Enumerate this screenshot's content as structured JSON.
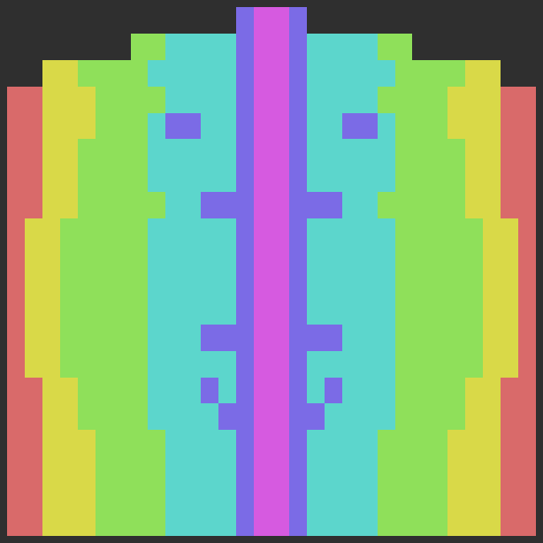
{
  "chart_data": {
    "type": "heatmap",
    "tick_labels": false,
    "colors": [
      "#2f2f2f",
      "#d96a6a",
      "#d9d948",
      "#8fe05a",
      "#5cd6cc",
      "#7b6be6",
      "#d65ae0"
    ],
    "cells": [
      [
        0,
        0,
        0,
        0,
        0,
        0,
        0,
        0,
        0,
        0,
        0,
        0,
        0,
        5,
        6,
        6,
        5,
        0,
        0,
        0,
        0,
        0,
        0,
        0,
        0,
        0,
        0,
        0,
        0,
        0
      ],
      [
        0,
        0,
        0,
        0,
        0,
        0,
        0,
        3,
        3,
        4,
        4,
        4,
        4,
        5,
        6,
        6,
        5,
        4,
        4,
        4,
        4,
        3,
        3,
        0,
        0,
        0,
        0,
        0,
        0,
        0
      ],
      [
        0,
        0,
        2,
        2,
        3,
        3,
        3,
        3,
        4,
        4,
        4,
        4,
        4,
        5,
        6,
        6,
        5,
        4,
        4,
        4,
        4,
        4,
        3,
        3,
        3,
        3,
        2,
        2,
        0,
        0
      ],
      [
        1,
        1,
        2,
        2,
        2,
        3,
        3,
        3,
        3,
        4,
        4,
        4,
        4,
        5,
        6,
        6,
        5,
        4,
        4,
        4,
        4,
        3,
        3,
        3,
        3,
        2,
        2,
        2,
        1,
        1
      ],
      [
        1,
        1,
        2,
        2,
        2,
        3,
        3,
        3,
        4,
        5,
        5,
        4,
        4,
        5,
        6,
        6,
        5,
        4,
        4,
        5,
        5,
        4,
        3,
        3,
        3,
        2,
        2,
        2,
        1,
        1
      ],
      [
        1,
        1,
        2,
        2,
        3,
        3,
        3,
        3,
        4,
        4,
        4,
        4,
        4,
        5,
        6,
        6,
        5,
        4,
        4,
        4,
        4,
        4,
        3,
        3,
        3,
        3,
        2,
        2,
        1,
        1
      ],
      [
        1,
        1,
        2,
        2,
        3,
        3,
        3,
        3,
        4,
        4,
        4,
        4,
        4,
        5,
        6,
        6,
        5,
        4,
        4,
        4,
        4,
        4,
        3,
        3,
        3,
        3,
        2,
        2,
        1,
        1
      ],
      [
        1,
        1,
        2,
        2,
        3,
        3,
        3,
        3,
        3,
        4,
        4,
        5,
        5,
        5,
        6,
        6,
        5,
        5,
        5,
        4,
        4,
        3,
        3,
        3,
        3,
        3,
        2,
        2,
        1,
        1
      ],
      [
        1,
        2,
        2,
        3,
        3,
        3,
        3,
        3,
        4,
        4,
        4,
        4,
        4,
        5,
        6,
        6,
        5,
        4,
        4,
        4,
        4,
        4,
        3,
        3,
        3,
        3,
        3,
        2,
        2,
        1
      ],
      [
        1,
        2,
        2,
        3,
        3,
        3,
        3,
        3,
        4,
        4,
        4,
        4,
        4,
        5,
        6,
        6,
        5,
        4,
        4,
        4,
        4,
        4,
        3,
        3,
        3,
        3,
        3,
        2,
        2,
        1
      ],
      [
        1,
        2,
        2,
        3,
        3,
        3,
        3,
        3,
        4,
        4,
        4,
        4,
        4,
        5,
        6,
        6,
        5,
        4,
        4,
        4,
        4,
        4,
        3,
        3,
        3,
        3,
        3,
        2,
        2,
        1
      ],
      [
        1,
        2,
        2,
        3,
        3,
        3,
        3,
        3,
        4,
        4,
        4,
        4,
        4,
        5,
        6,
        6,
        5,
        4,
        4,
        4,
        4,
        4,
        3,
        3,
        3,
        3,
        3,
        2,
        2,
        1
      ],
      [
        1,
        2,
        2,
        3,
        3,
        3,
        3,
        3,
        4,
        4,
        4,
        5,
        5,
        5,
        6,
        6,
        5,
        5,
        5,
        4,
        4,
        4,
        3,
        3,
        3,
        3,
        3,
        2,
        2,
        1
      ],
      [
        1,
        2,
        2,
        3,
        3,
        3,
        3,
        3,
        4,
        4,
        4,
        4,
        4,
        5,
        6,
        6,
        5,
        4,
        4,
        4,
        4,
        4,
        3,
        3,
        3,
        3,
        3,
        2,
        2,
        1
      ],
      [
        1,
        1,
        2,
        2,
        3,
        3,
        3,
        3,
        4,
        4,
        4,
        5,
        4,
        5,
        6,
        6,
        5,
        4,
        5,
        4,
        4,
        4,
        3,
        3,
        3,
        3,
        2,
        2,
        1,
        1
      ],
      [
        1,
        1,
        2,
        2,
        3,
        3,
        3,
        3,
        4,
        4,
        4,
        4,
        5,
        5,
        6,
        6,
        5,
        5,
        4,
        4,
        4,
        4,
        3,
        3,
        3,
        3,
        2,
        2,
        1,
        1
      ],
      [
        1,
        1,
        2,
        2,
        2,
        3,
        3,
        3,
        3,
        4,
        4,
        4,
        4,
        5,
        6,
        6,
        5,
        4,
        4,
        4,
        4,
        3,
        3,
        3,
        3,
        2,
        2,
        2,
        1,
        1
      ],
      [
        1,
        1,
        2,
        2,
        2,
        3,
        3,
        3,
        3,
        4,
        4,
        4,
        4,
        5,
        6,
        6,
        5,
        4,
        4,
        4,
        4,
        3,
        3,
        3,
        3,
        2,
        2,
        2,
        1,
        1
      ],
      [
        1,
        1,
        2,
        2,
        2,
        3,
        3,
        3,
        3,
        4,
        4,
        4,
        4,
        5,
        6,
        6,
        5,
        4,
        4,
        4,
        4,
        3,
        3,
        3,
        3,
        2,
        2,
        2,
        1,
        1
      ],
      [
        1,
        1,
        2,
        2,
        2,
        3,
        3,
        3,
        3,
        4,
        4,
        4,
        4,
        5,
        6,
        6,
        5,
        4,
        4,
        4,
        4,
        3,
        3,
        3,
        3,
        2,
        2,
        2,
        1,
        1
      ]
    ]
  }
}
